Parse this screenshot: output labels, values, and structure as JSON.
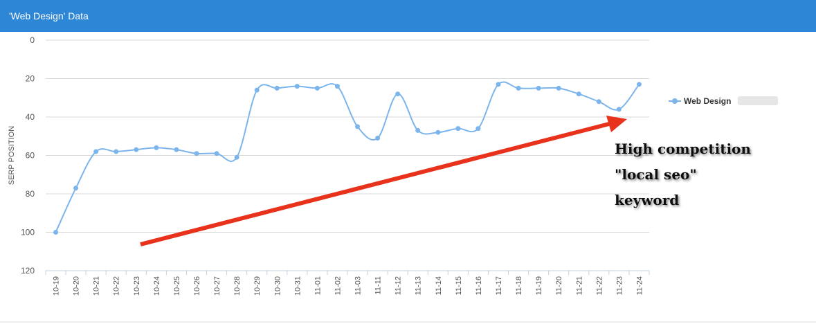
{
  "chart_data": {
    "type": "line",
    "title": "'Web Design' Data",
    "ylabel": "SERP POSITION",
    "categories": [
      "10-19",
      "10-20",
      "10-21",
      "10-22",
      "10-23",
      "10-24",
      "10-25",
      "10-26",
      "10-27",
      "10-28",
      "10-29",
      "10-30",
      "10-31",
      "11-01",
      "11-02",
      "11-03",
      "11-11",
      "11-12",
      "11-13",
      "11-14",
      "11-15",
      "11-16",
      "11-17",
      "11-18",
      "11-19",
      "11-20",
      "11-21",
      "11-22",
      "11-23",
      "11-24"
    ],
    "series": [
      {
        "name": "Web Design",
        "color": "#7cb5ec",
        "values": [
          100,
          77,
          58,
          58,
          57,
          56,
          57,
          59,
          59,
          61,
          26,
          25,
          24,
          25,
          24,
          45,
          51,
          28,
          47,
          48,
          46,
          46,
          23,
          25,
          25,
          25,
          28,
          32,
          36,
          23
        ]
      }
    ],
    "ylim": [
      0,
      120
    ],
    "yticks": [
      0,
      20,
      40,
      60,
      80,
      100,
      120
    ],
    "y_reversed": true,
    "grid": true,
    "legend": "right",
    "annotation": [
      "High competition",
      "\"local seo\"",
      "keyword"
    ]
  }
}
